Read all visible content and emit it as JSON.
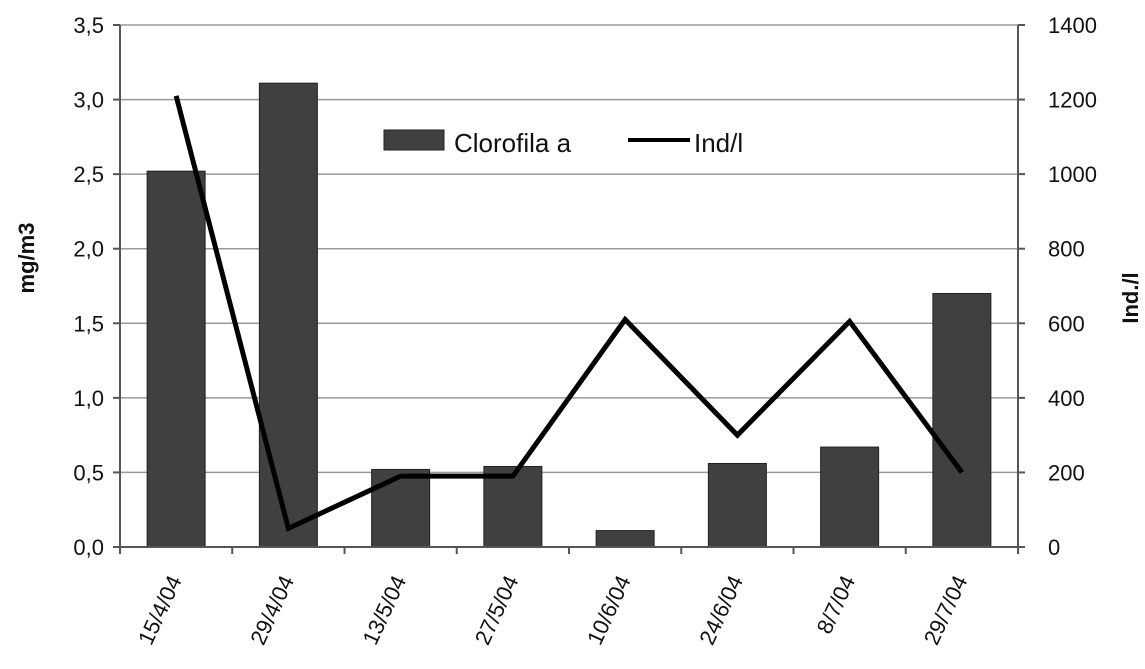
{
  "chart_data": {
    "type": "bar+line",
    "categories": [
      "15/4/04",
      "29/4/04",
      "13/5/04",
      "27/5/04",
      "10/6/04",
      "24/6/04",
      "8/7/04",
      "29/7/04"
    ],
    "series": [
      {
        "name": "Clorofila a",
        "type": "bar",
        "axis": "left",
        "values": [
          2.52,
          3.11,
          0.52,
          0.54,
          0.11,
          0.56,
          0.67,
          1.7
        ],
        "color": "#404040"
      },
      {
        "name": "Ind/l",
        "type": "line",
        "axis": "right",
        "values": [
          1210,
          50,
          190,
          190,
          610,
          300,
          605,
          200
        ],
        "color": "#000000"
      }
    ],
    "ylabel": "mg/m3",
    "y2label": "Ind./l",
    "ylim": [
      0,
      3.5
    ],
    "y2lim": [
      0,
      1400
    ],
    "y_ticks": [
      "0,0",
      "0,5",
      "1,0",
      "1,5",
      "2,0",
      "2,5",
      "3,0",
      "3,5"
    ],
    "y2_ticks": [
      "0",
      "200",
      "400",
      "600",
      "800",
      "1000",
      "1200",
      "1400"
    ],
    "grid": true,
    "legend_position": "top-center"
  }
}
